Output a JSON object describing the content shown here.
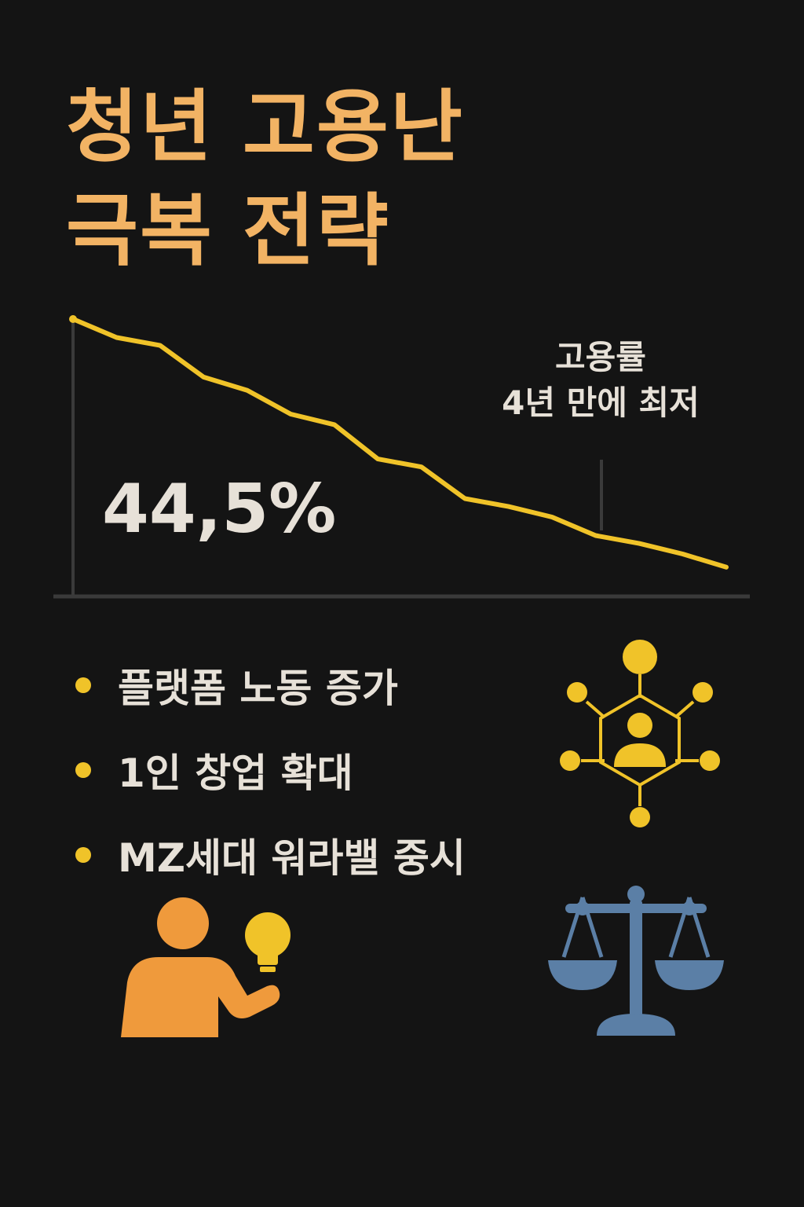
{
  "title": {
    "line1": "청년 고용난",
    "line2": "극복 전략"
  },
  "chart_data": {
    "type": "line",
    "title": "",
    "xlabel": "",
    "ylabel": "",
    "series": [
      {
        "values": [
          100,
          93,
          90,
          78,
          73,
          64,
          60,
          47,
          44,
          32,
          29,
          25,
          18,
          15,
          11,
          6
        ]
      }
    ],
    "grid": false,
    "highlight_value": "44,5%",
    "annotation": {
      "line1": "고용률",
      "line2": "4년 만에 최저"
    },
    "colors": {
      "line": "#f0c329",
      "axis": "#3a3a3a"
    }
  },
  "bullets": [
    {
      "text": "플랫폼 노동 증가"
    },
    {
      "text": "1인 창업 확대"
    },
    {
      "text": "MZ세대 워라밸 중시"
    }
  ],
  "icons": {
    "network": "network-person-icon",
    "person": "person-lightbulb-icon",
    "scale": "balance-scale-icon"
  },
  "colors": {
    "background": "#141414",
    "title": "#f2b364",
    "text": "#e7e1d8",
    "accent_yellow": "#f0c329",
    "person_orange": "#ef9a3c",
    "scale_blue": "#5b7fa6"
  }
}
